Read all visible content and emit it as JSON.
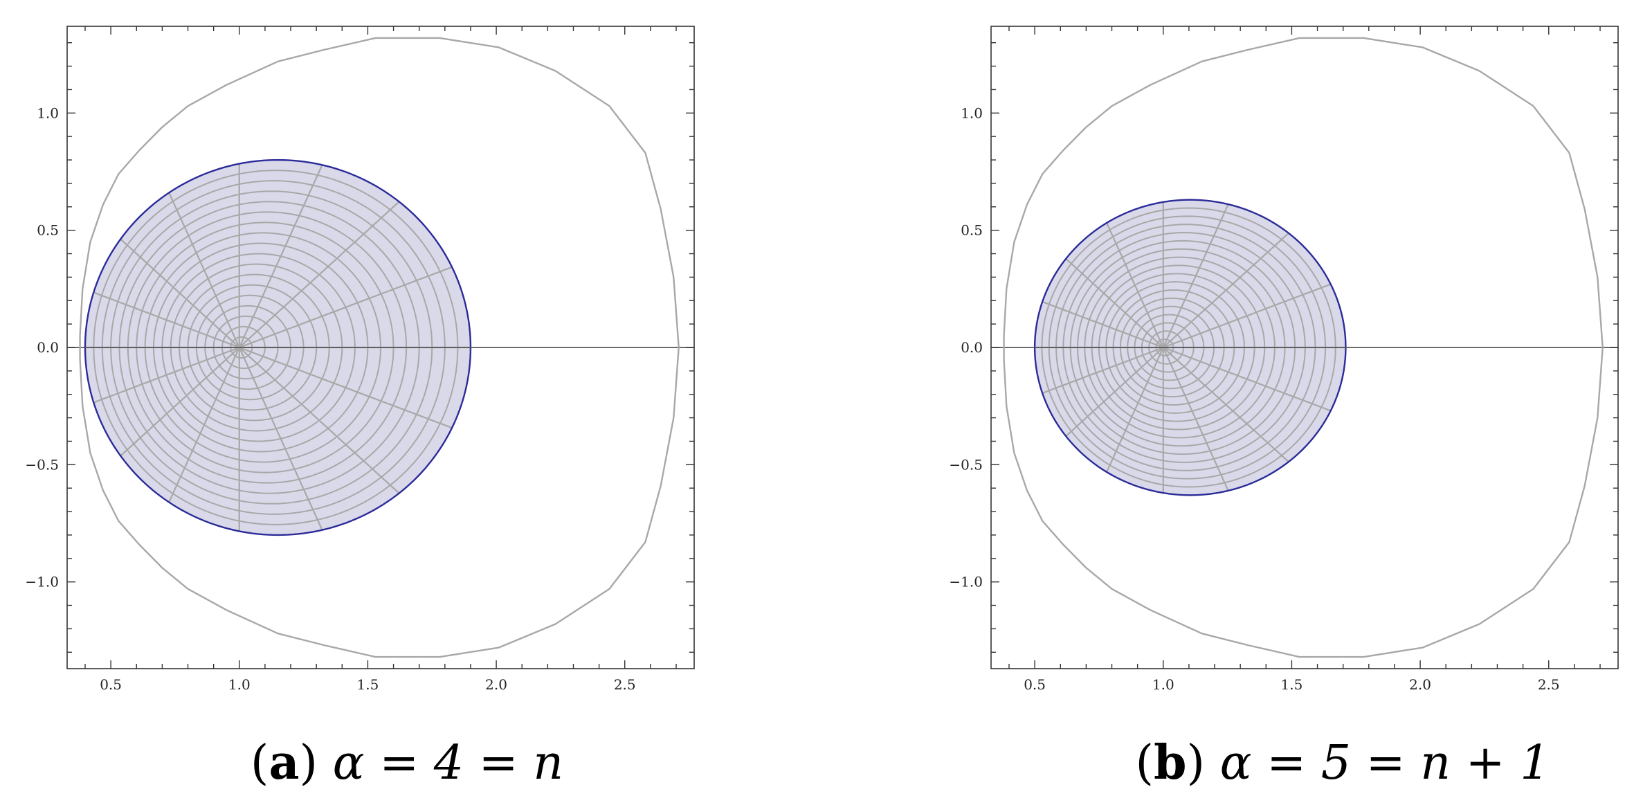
{
  "chart_data": [
    {
      "type": "line",
      "panel": "(a)",
      "caption": {
        "letter": "a",
        "formula": "α = 4 = n"
      },
      "xlim": [
        0.33,
        2.77
      ],
      "ylim": [
        -1.37,
        1.37
      ],
      "xticks": [
        0.5,
        1.0,
        1.5,
        2.0,
        2.5
      ],
      "yticks": [
        -1.0,
        -0.5,
        0.0,
        0.5,
        1.0
      ],
      "xtick_labels": [
        "0.5",
        "1.0",
        "1.5",
        "2.0",
        "2.5"
      ],
      "ytick_labels": [
        "−1.0",
        "−0.5",
        "0.0",
        "0.5",
        "1.0"
      ],
      "grid": false,
      "outer_curve": {
        "x": [
          2.71,
          2.69,
          2.64,
          2.58,
          2.44,
          2.23,
          2.01,
          1.78,
          1.53,
          1.33,
          1.15,
          0.95,
          0.8,
          0.7,
          0.61,
          0.53,
          0.47,
          0.42,
          0.39,
          0.38,
          0.38,
          0.39,
          0.42,
          0.47,
          0.53,
          0.61,
          0.7,
          0.8,
          0.95,
          1.15,
          1.33,
          1.53,
          1.78,
          2.01,
          2.23,
          2.44,
          2.58,
          2.64,
          2.69,
          2.71
        ],
        "y": [
          0.0,
          0.3,
          0.59,
          0.83,
          1.03,
          1.18,
          1.28,
          1.32,
          1.32,
          1.27,
          1.22,
          1.12,
          1.03,
          0.94,
          0.84,
          0.74,
          0.61,
          0.45,
          0.25,
          0.05,
          -0.05,
          -0.25,
          -0.45,
          -0.61,
          -0.74,
          -0.84,
          -0.94,
          -1.03,
          -1.12,
          -1.22,
          -1.27,
          -1.32,
          -1.32,
          -1.28,
          -1.18,
          -1.03,
          -0.83,
          -0.59,
          -0.3,
          0.0
        ],
        "color": "#a8a8a8"
      },
      "disk_image": {
        "x_range": [
          0.4,
          1.9
        ],
        "y_range": [
          -0.8,
          0.8
        ],
        "fill": "#d9d9ea",
        "edge_color": "#2b2b9a",
        "center": [
          1.0,
          0.0
        ],
        "grid_color": "#a8a8a8"
      },
      "real_axis": {
        "y": 0.0,
        "color": "#555555"
      }
    },
    {
      "type": "line",
      "panel": "(b)",
      "caption": {
        "letter": "b",
        "formula": "α = 5 = n + 1"
      },
      "xlim": [
        0.33,
        2.77
      ],
      "ylim": [
        -1.37,
        1.37
      ],
      "xticks": [
        0.5,
        1.0,
        1.5,
        2.0,
        2.5
      ],
      "yticks": [
        -1.0,
        -0.5,
        0.0,
        0.5,
        1.0
      ],
      "xtick_labels": [
        "0.5",
        "1.0",
        "1.5",
        "2.0",
        "2.5"
      ],
      "ytick_labels": [
        "−1.0",
        "−0.5",
        "0.0",
        "0.5",
        "1.0"
      ],
      "grid": false,
      "outer_curve": {
        "x": [
          2.71,
          2.69,
          2.64,
          2.58,
          2.44,
          2.23,
          2.01,
          1.78,
          1.53,
          1.33,
          1.15,
          0.95,
          0.8,
          0.7,
          0.61,
          0.53,
          0.47,
          0.42,
          0.39,
          0.38,
          0.38,
          0.39,
          0.42,
          0.47,
          0.53,
          0.61,
          0.7,
          0.8,
          0.95,
          1.15,
          1.33,
          1.53,
          1.78,
          2.01,
          2.23,
          2.44,
          2.58,
          2.64,
          2.69,
          2.71
        ],
        "y": [
          0.0,
          0.3,
          0.59,
          0.83,
          1.03,
          1.18,
          1.28,
          1.32,
          1.32,
          1.27,
          1.22,
          1.12,
          1.03,
          0.94,
          0.84,
          0.74,
          0.61,
          0.45,
          0.25,
          0.05,
          -0.05,
          -0.25,
          -0.45,
          -0.61,
          -0.74,
          -0.84,
          -0.94,
          -1.03,
          -1.12,
          -1.22,
          -1.27,
          -1.32,
          -1.32,
          -1.28,
          -1.18,
          -1.03,
          -0.83,
          -0.59,
          -0.3,
          0.0
        ],
        "color": "#a8a8a8"
      },
      "disk_image": {
        "x_range": [
          0.5,
          1.71
        ],
        "y_range": [
          -0.63,
          0.63
        ],
        "fill": "#d9d9ea",
        "edge_color": "#2b2b9a",
        "center": [
          1.0,
          0.0
        ],
        "grid_color": "#a8a8a8"
      },
      "real_axis": {
        "y": 0.0,
        "color": "#555555"
      }
    }
  ]
}
